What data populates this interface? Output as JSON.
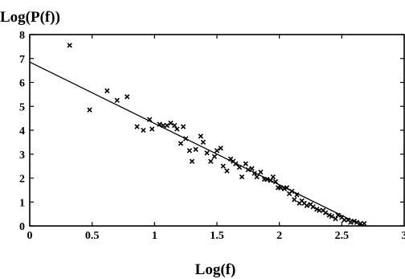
{
  "chart_data": {
    "type": "scatter",
    "title": "",
    "xlabel": "Log(f)",
    "ylabel": "Log(P(f))",
    "xlim": [
      0,
      3
    ],
    "ylim": [
      0,
      8
    ],
    "xticks": [
      "0",
      "0.5",
      "1",
      "1.5",
      "2",
      "2.5",
      "3"
    ],
    "yticks": [
      "0",
      "1",
      "2",
      "3",
      "4",
      "5",
      "6",
      "7",
      "8"
    ],
    "grid": false,
    "legend": "none",
    "marker": "x",
    "colors": {
      "marker": "#000000",
      "line": "#000000",
      "axes": "#000000"
    },
    "series": [
      {
        "points": [
          [
            0.32,
            7.55
          ],
          [
            0.48,
            4.85
          ],
          [
            0.62,
            5.65
          ],
          [
            0.7,
            5.25
          ],
          [
            0.78,
            5.4
          ],
          [
            0.86,
            4.15
          ],
          [
            0.91,
            4.0
          ],
          [
            0.96,
            4.45
          ],
          [
            0.98,
            4.05
          ],
          [
            1.04,
            4.25
          ],
          [
            1.07,
            4.2
          ],
          [
            1.1,
            4.2
          ],
          [
            1.13,
            4.3
          ],
          [
            1.16,
            4.2
          ],
          [
            1.18,
            4.05
          ],
          [
            1.21,
            3.45
          ],
          [
            1.23,
            4.15
          ],
          [
            1.25,
            3.65
          ],
          [
            1.28,
            3.15
          ],
          [
            1.3,
            2.7
          ],
          [
            1.33,
            3.2
          ],
          [
            1.37,
            3.75
          ],
          [
            1.39,
            3.5
          ],
          [
            1.42,
            3.05
          ],
          [
            1.45,
            2.7
          ],
          [
            1.48,
            2.9
          ],
          [
            1.5,
            3.15
          ],
          [
            1.53,
            3.25
          ],
          [
            1.55,
            2.5
          ],
          [
            1.58,
            2.3
          ],
          [
            1.61,
            2.8
          ],
          [
            1.63,
            2.7
          ],
          [
            1.65,
            2.6
          ],
          [
            1.68,
            2.45
          ],
          [
            1.7,
            2.05
          ],
          [
            1.73,
            2.6
          ],
          [
            1.75,
            2.35
          ],
          [
            1.78,
            2.4
          ],
          [
            1.8,
            2.2
          ],
          [
            1.82,
            2.05
          ],
          [
            1.85,
            2.25
          ],
          [
            1.88,
            1.95
          ],
          [
            1.9,
            1.95
          ],
          [
            1.93,
            1.9
          ],
          [
            1.95,
            2.05
          ],
          [
            1.97,
            1.85
          ],
          [
            1.99,
            1.6
          ],
          [
            2.01,
            1.6
          ],
          [
            2.04,
            1.55
          ],
          [
            2.06,
            1.6
          ],
          [
            2.08,
            1.35
          ],
          [
            2.1,
            1.45
          ],
          [
            2.12,
            1.1
          ],
          [
            2.14,
            1.3
          ],
          [
            2.16,
            0.95
          ],
          [
            2.18,
            1.05
          ],
          [
            2.2,
            0.95
          ],
          [
            2.22,
            0.85
          ],
          [
            2.25,
            0.9
          ],
          [
            2.27,
            0.8
          ],
          [
            2.3,
            0.7
          ],
          [
            2.32,
            0.65
          ],
          [
            2.35,
            0.65
          ],
          [
            2.37,
            0.55
          ],
          [
            2.4,
            0.45
          ],
          [
            2.42,
            0.4
          ],
          [
            2.45,
            0.3
          ],
          [
            2.47,
            0.45
          ],
          [
            2.5,
            0.35
          ],
          [
            2.52,
            0.25
          ],
          [
            2.55,
            0.25
          ],
          [
            2.57,
            0.15
          ],
          [
            2.6,
            0.2
          ],
          [
            2.62,
            0.15
          ],
          [
            2.65,
            0.1
          ],
          [
            2.68,
            0.1
          ]
        ]
      }
    ],
    "fit_line": {
      "x": [
        0,
        2.67
      ],
      "y": [
        6.85,
        0
      ]
    }
  }
}
